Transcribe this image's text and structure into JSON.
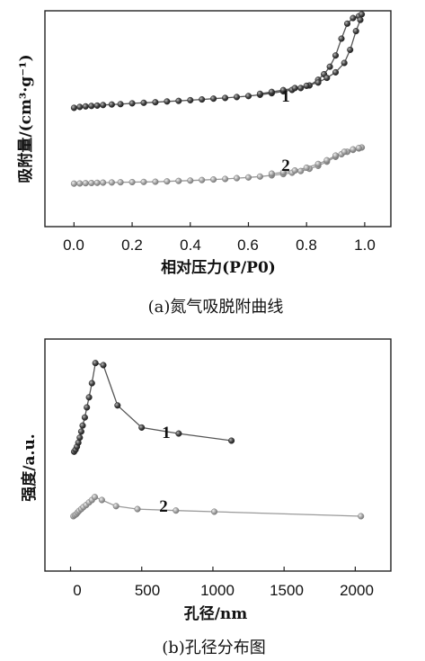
{
  "chart_data": [
    {
      "type": "line",
      "caption": "(a)氮气吸脱附曲线",
      "xlabel": "相对压力(P/P0)",
      "ylabel": "吸附量/(cm³·g⁻¹)",
      "xlim": [
        -0.1,
        1.09
      ],
      "ylim": [
        0,
        1
      ],
      "xticks": [
        "0.0",
        "0.2",
        "0.4",
        "0.6",
        "0.8",
        "1.0"
      ],
      "xtick_values": [
        0,
        0.2,
        0.4,
        0.6,
        0.8,
        1.0
      ],
      "yticks_shown": false,
      "grid": false,
      "series": [
        {
          "name": "1",
          "color": "#555555",
          "x": [
            0.0,
            0.02,
            0.04,
            0.06,
            0.08,
            0.1,
            0.13,
            0.16,
            0.2,
            0.24,
            0.28,
            0.32,
            0.36,
            0.4,
            0.44,
            0.48,
            0.52,
            0.56,
            0.6,
            0.64,
            0.68,
            0.72,
            0.75,
            0.78,
            0.81,
            0.84,
            0.86,
            0.88,
            0.9,
            0.92,
            0.94,
            0.96,
            0.98,
            0.99,
            0.985,
            0.97,
            0.95,
            0.93,
            0.9,
            0.87,
            0.84,
            0.8,
            0.76,
            0.72,
            0.68,
            0.64
          ],
          "y": [
            0.51,
            0.515,
            0.518,
            0.52,
            0.522,
            0.525,
            0.528,
            0.53,
            0.534,
            0.537,
            0.54,
            0.544,
            0.547,
            0.551,
            0.555,
            0.559,
            0.563,
            0.568,
            0.573,
            0.58,
            0.588,
            0.598,
            0.606,
            0.616,
            0.63,
            0.66,
            0.69,
            0.73,
            0.79,
            0.88,
            0.96,
            0.99,
            1.0,
            1.01,
            0.98,
            0.92,
            0.82,
            0.75,
            0.7,
            0.67,
            0.645,
            0.628,
            0.616,
            0.605,
            0.595,
            0.585
          ]
        },
        {
          "name": "2",
          "color": "#9a9a9a",
          "x": [
            0.0,
            0.02,
            0.04,
            0.06,
            0.08,
            0.1,
            0.13,
            0.16,
            0.2,
            0.24,
            0.28,
            0.32,
            0.36,
            0.4,
            0.44,
            0.48,
            0.52,
            0.56,
            0.6,
            0.64,
            0.68,
            0.72,
            0.75,
            0.78,
            0.81,
            0.84,
            0.87,
            0.9,
            0.92,
            0.94,
            0.96,
            0.98,
            0.99,
            0.98,
            0.96,
            0.93,
            0.9,
            0.87,
            0.84,
            0.8,
            0.76,
            0.72,
            0.68
          ],
          "y": [
            0.105,
            0.106,
            0.107,
            0.108,
            0.109,
            0.11,
            0.111,
            0.112,
            0.113,
            0.114,
            0.115,
            0.117,
            0.119,
            0.121,
            0.124,
            0.127,
            0.13,
            0.134,
            0.138,
            0.143,
            0.149,
            0.156,
            0.163,
            0.172,
            0.184,
            0.2,
            0.222,
            0.248,
            0.262,
            0.275,
            0.285,
            0.293,
            0.298,
            0.295,
            0.288,
            0.275,
            0.255,
            0.23,
            0.21,
            0.19,
            0.175,
            0.165,
            0.158
          ]
        }
      ],
      "annotations": [
        {
          "text": "1",
          "x": 0.735,
          "y": 0.72
        },
        {
          "text": "2",
          "x": 0.735,
          "y": 0.3
        }
      ]
    },
    {
      "type": "line",
      "caption": "(b)孔径分布图",
      "xlabel": "孔径/nm",
      "ylabel": "强度/a.u.",
      "xlim": [
        -180,
        2250
      ],
      "ylim": [
        0,
        1
      ],
      "xticks": [
        "0",
        "500",
        "1000",
        "1500",
        "2000"
      ],
      "xtick_values": [
        0,
        500,
        1000,
        1500,
        2000
      ],
      "yticks_shown": false,
      "grid": false,
      "series": [
        {
          "name": "1",
          "color": "#555555",
          "x": [
            25,
            35,
            45,
            55,
            65,
            75,
            85,
            100,
            115,
            130,
            150,
            175,
            230,
            330,
            500,
            760,
            1130
          ],
          "y": [
            0.53,
            0.54,
            0.555,
            0.575,
            0.6,
            0.63,
            0.66,
            0.7,
            0.75,
            0.8,
            0.87,
            0.97,
            0.96,
            0.76,
            0.65,
            0.62,
            0.585
          ]
        },
        {
          "name": "2",
          "color": "#9a9a9a",
          "x": [
            20,
            30,
            40,
            50,
            60,
            75,
            90,
            110,
            130,
            150,
            170,
            220,
            320,
            470,
            740,
            1010,
            2040
          ],
          "y": [
            0.21,
            0.215,
            0.22,
            0.228,
            0.236,
            0.245,
            0.255,
            0.265,
            0.278,
            0.29,
            0.305,
            0.29,
            0.26,
            0.245,
            0.238,
            0.232,
            0.21
          ]
        }
      ],
      "annotations": [
        {
          "text": "1",
          "x": 640,
          "y": 0.64
        },
        {
          "text": "2",
          "x": 640,
          "y": 0.26
        }
      ]
    }
  ]
}
